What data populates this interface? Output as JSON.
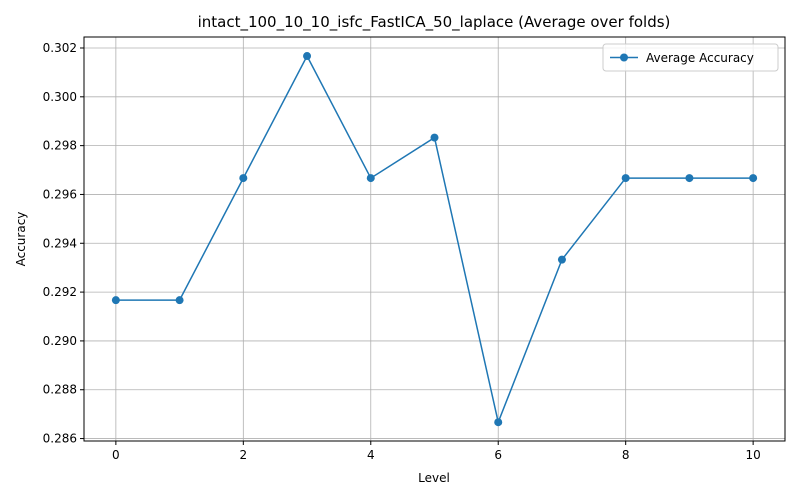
{
  "chart_data": {
    "type": "line",
    "title": "intact_100_10_10_isfc_FastICA_50_laplace (Average over folds)",
    "xlabel": "Level",
    "ylabel": "Accuracy",
    "x": [
      0,
      1,
      2,
      3,
      4,
      5,
      6,
      7,
      8,
      9,
      10
    ],
    "series": [
      {
        "name": "Average Accuracy",
        "color": "#1f77b4",
        "marker": "circle",
        "values": [
          0.29167,
          0.29167,
          0.29667,
          0.30167,
          0.29667,
          0.29833,
          0.28667,
          0.29333,
          0.29667,
          0.29667,
          0.29667
        ]
      }
    ],
    "xlim": [
      -0.5,
      10.5
    ],
    "ylim": [
      0.2859,
      0.30245
    ],
    "xticks": [
      0,
      2,
      4,
      6,
      8,
      10
    ],
    "xtick_labels": [
      "0",
      "2",
      "4",
      "6",
      "8",
      "10"
    ],
    "yticks": [
      0.286,
      0.288,
      0.29,
      0.292,
      0.294,
      0.296,
      0.298,
      0.3,
      0.302
    ],
    "ytick_labels": [
      "0.286",
      "0.288",
      "0.290",
      "0.292",
      "0.294",
      "0.296",
      "0.298",
      "0.300",
      "0.302"
    ],
    "grid": true,
    "legend_position": "top-right"
  }
}
